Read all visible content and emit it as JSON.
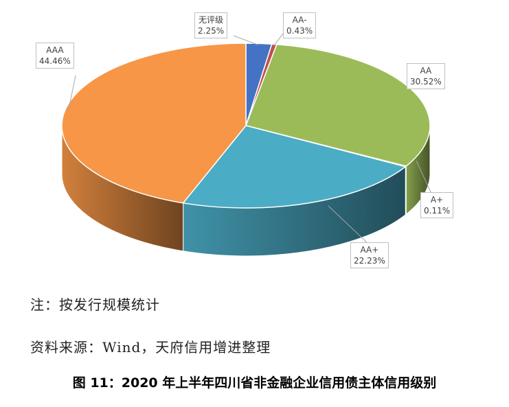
{
  "chart_data": {
    "type": "pie",
    "categories": [
      "无评级",
      "AA-",
      "AA",
      "A+",
      "AA+",
      "AAA"
    ],
    "values": [
      2.25,
      0.43,
      30.52,
      0.11,
      22.23,
      44.46
    ],
    "value_labels": [
      "2.25%",
      "0.43%",
      "30.52%",
      "0.11%",
      "22.23%",
      "44.46%"
    ],
    "colors": [
      "#4472c4",
      "#c0504d",
      "#9bbb59",
      "#8064a2",
      "#4bacc6",
      "#f79646"
    ],
    "unit": "%"
  },
  "notes": {
    "note": "注：按发行规模统计",
    "source": "资料来源：Wind，天府信用增进整理"
  },
  "caption": "图 11：2020 年上半年四川省非金融企业信用债主体信用级别"
}
